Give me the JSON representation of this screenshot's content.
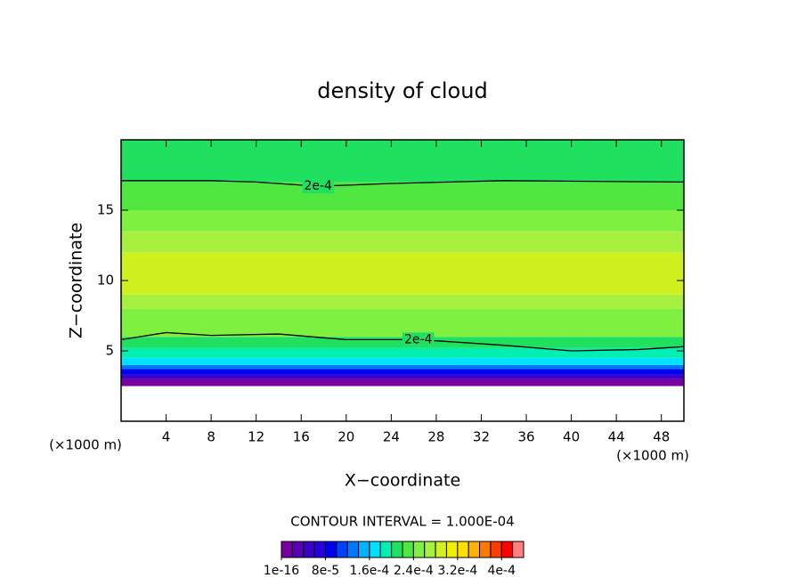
{
  "chart_data": {
    "type": "contour",
    "title": "density of cloud",
    "xlabel": "X−coordinate",
    "ylabel": "Z−coordinate",
    "x_unit_left": "(×1000 m)",
    "x_unit_right": "(×1000 m)",
    "contour_interval": "CONTOUR INTERVAL = 1.000E-04",
    "xlim": [
      0,
      50
    ],
    "ylim": [
      0,
      20
    ],
    "xticks": [
      4,
      8,
      12,
      16,
      20,
      24,
      28,
      32,
      36,
      40,
      44,
      48
    ],
    "yticks": [
      5,
      10,
      15
    ],
    "field": {
      "z": [
        2.5,
        3,
        3.3,
        3.7,
        4,
        4.5,
        5.2,
        6,
        8,
        9,
        12,
        13.5,
        15,
        17
      ],
      "values": [
        1e-05,
        5e-05,
        9e-05,
        0.00013,
        0.00017,
        0.000195,
        0.00021,
        0.00025,
        0.00027,
        0.00029,
        0.00027,
        0.00025,
        0.00023,
        0.00021
      ]
    },
    "contours": [
      {
        "label": "2e-4",
        "x": [
          0,
          8,
          12,
          17.5,
          24,
          34,
          50
        ],
        "y": [
          17.1,
          17.1,
          17.0,
          16.7,
          16.9,
          17.1,
          17.0
        ]
      },
      {
        "label": "2e-4",
        "x": [
          0,
          4,
          8,
          14,
          20,
          26.4,
          34,
          40,
          46,
          50
        ],
        "y": [
          5.8,
          6.3,
          6.1,
          6.2,
          5.8,
          5.8,
          5.4,
          5.0,
          5.1,
          5.3
        ]
      }
    ],
    "colorbar": {
      "lim": [
        0,
        0.00044
      ],
      "colors": [
        "#7800a0",
        "#5a00b4",
        "#3c00c8",
        "#2800e0",
        "#0000f0",
        "#0040ff",
        "#0078ff",
        "#00b4ff",
        "#00e0ff",
        "#00f0b4",
        "#20e060",
        "#50e840",
        "#80f040",
        "#a8f040",
        "#d0f020",
        "#f0f000",
        "#ffe000",
        "#ffb400",
        "#ff7800",
        "#ff3c00",
        "#ff0000",
        "#ff8080"
      ],
      "ticks": [
        {
          "value": 1e-16,
          "label": "1e-16"
        },
        {
          "value": 8e-05,
          "label": "8e-5"
        },
        {
          "value": 0.00016,
          "label": "1.6e-4"
        },
        {
          "value": 0.00024,
          "label": "2.4e-4"
        },
        {
          "value": 0.00032,
          "label": "3.2e-4"
        },
        {
          "value": 0.0004,
          "label": "4e-4"
        }
      ]
    }
  }
}
